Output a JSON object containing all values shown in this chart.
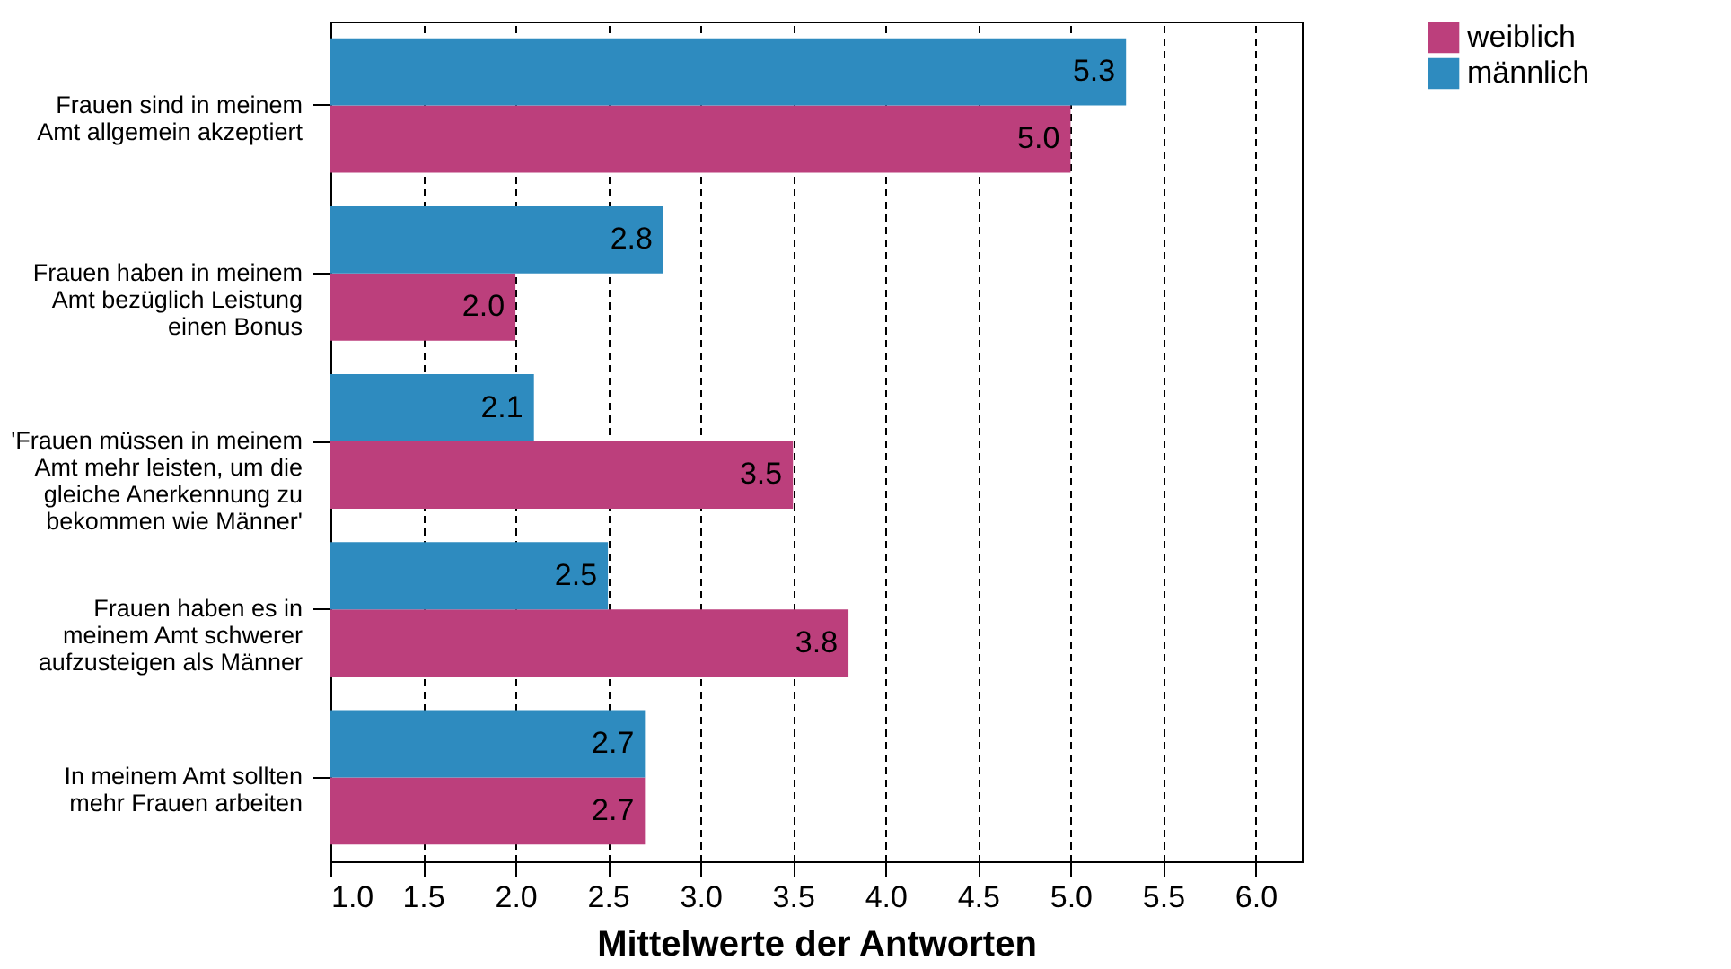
{
  "chart_data": {
    "type": "bar",
    "orientation": "horizontal",
    "xlabel": "Mittelwerte der Antworten",
    "categories": [
      "Frauen sind in meinem Amt allgemein akzeptiert",
      "Frauen haben in meinem Amt bezüglich Leistung einen Bonus",
      "'Frauen müssen in meinem Amt mehr leisten, um die gleiche Anerkennung zu bekommen wie Männer'",
      "Frauen haben es in meinem Amt schwerer aufzusteigen als Männer",
      "In meinem Amt sollten mehr Frauen arbeiten"
    ],
    "series": [
      {
        "name": "weiblich",
        "color": "#bc3f7c",
        "values": [
          5.0,
          2.0,
          3.5,
          3.8,
          2.7
        ],
        "value_labels": [
          "5.0",
          "2.0",
          "3.5",
          "3.8",
          "2.7"
        ]
      },
      {
        "name": "männlich",
        "color": "#2e8bbf",
        "values": [
          5.3,
          2.8,
          2.1,
          2.5,
          2.7
        ],
        "value_labels": [
          "5.3",
          "2.8",
          "2.1",
          "2.5",
          "2.7"
        ]
      }
    ],
    "xlim": [
      1.0,
      6.25
    ],
    "xticks": [
      {
        "value": 1,
        "label": "1.0"
      },
      {
        "value": 1.5,
        "label": "1.5"
      },
      {
        "value": 2,
        "label": "2.0"
      },
      {
        "value": 2.5,
        "label": "2.5"
      },
      {
        "value": 3,
        "label": "3.0"
      },
      {
        "value": 3.5,
        "label": "3.5"
      },
      {
        "value": 4,
        "label": "4.0"
      },
      {
        "value": 4.5,
        "label": "4.5"
      },
      {
        "value": 5,
        "label": "5.0"
      },
      {
        "value": 5.5,
        "label": "5.5"
      },
      {
        "value": 6,
        "label": "6.0"
      }
    ],
    "grid": "x",
    "legend": "top right"
  }
}
